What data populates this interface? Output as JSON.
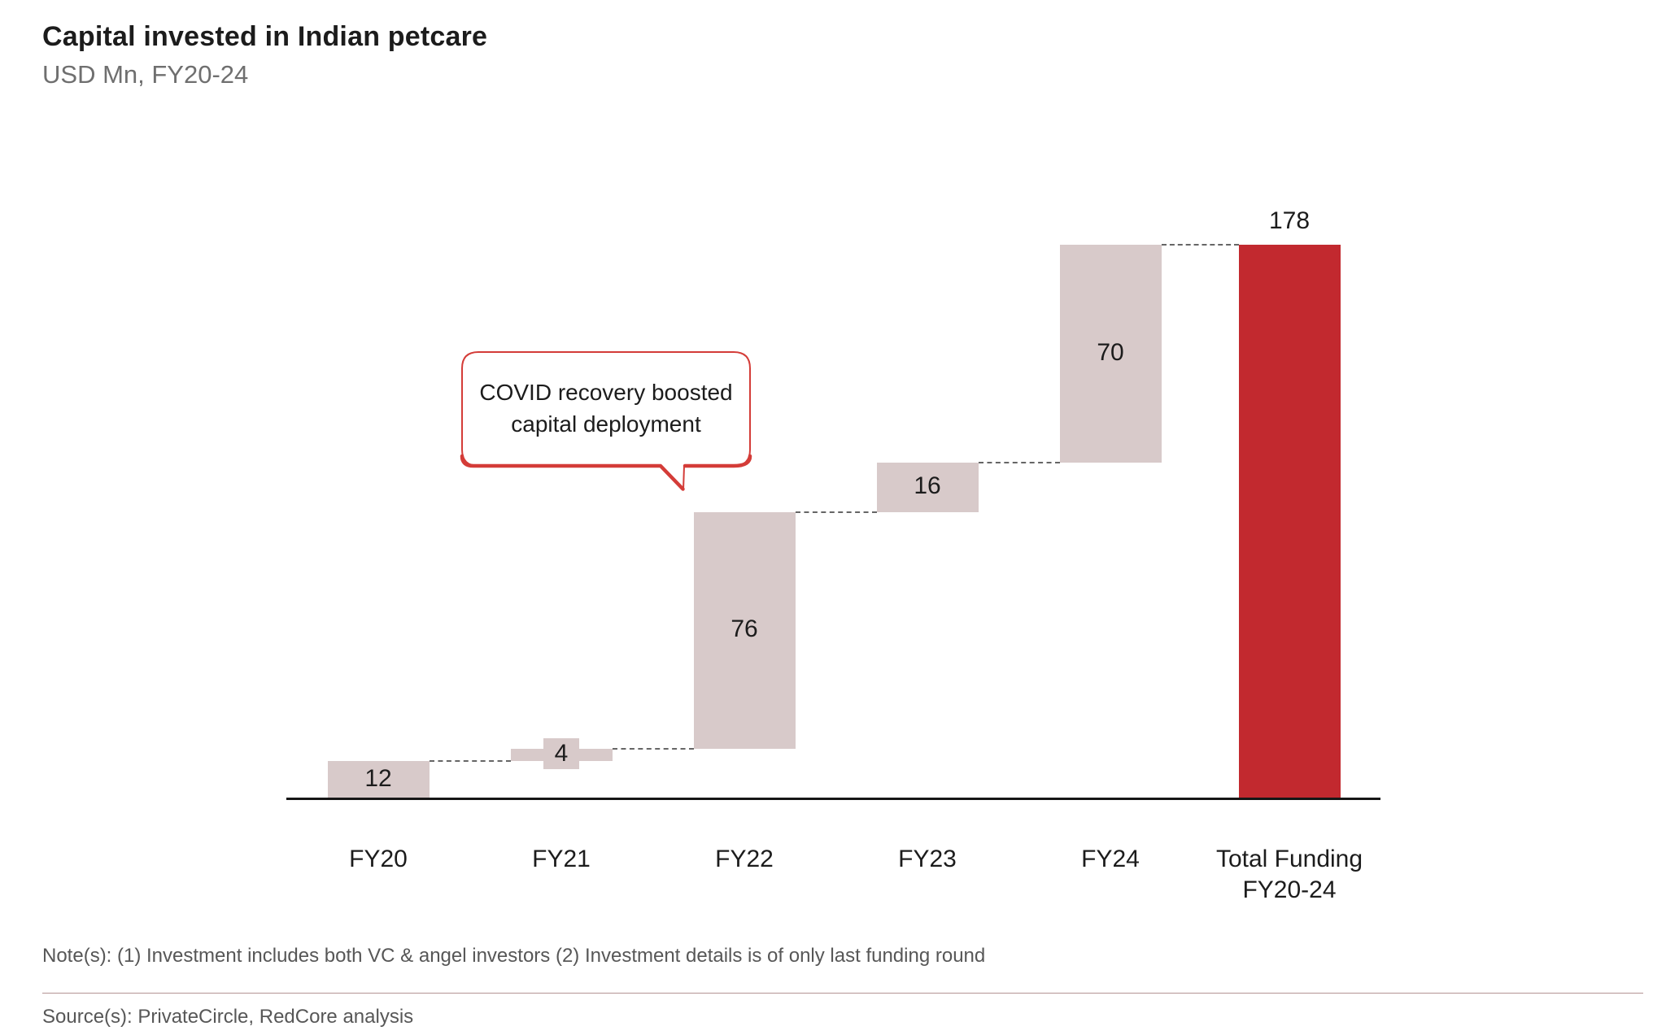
{
  "header": {
    "title": "Capital invested in Indian petcare",
    "subtitle": "USD Mn, FY20-24"
  },
  "callout": {
    "line1": "COVID recovery boosted",
    "line2": "capital deployment"
  },
  "colors": {
    "step_bar": "#d8caca",
    "total_bar": "#c2292f",
    "callout_red": "#d43c38",
    "axis": "#161616",
    "connector": "#666666",
    "text_dark": "#1c1c1c",
    "text_gray": "#6f6f6f"
  },
  "chart_data": {
    "type": "bar",
    "subtype": "waterfall",
    "title": "Capital invested in Indian petcare",
    "subtitle": "USD Mn, FY20-24",
    "unit": "USD Mn",
    "categories": [
      "FY20",
      "FY21",
      "FY22",
      "FY23",
      "FY24",
      "Total Funding FY20-24"
    ],
    "values": [
      12,
      4,
      76,
      16,
      70,
      178
    ],
    "cumulative_levels": [
      12,
      16,
      92,
      108,
      178
    ],
    "ylim": [
      0,
      190
    ],
    "grid": false,
    "legend": false,
    "annotation": {
      "text": "COVID recovery boosted capital deployment",
      "points_to": "FY22"
    },
    "points": [
      {
        "label": "FY20",
        "value": 12,
        "is_total": false
      },
      {
        "label": "FY21",
        "value": 4,
        "is_total": false
      },
      {
        "label": "FY22",
        "value": 76,
        "is_total": false
      },
      {
        "label": "FY23",
        "value": 16,
        "is_total": false
      },
      {
        "label": "FY24",
        "value": 70,
        "is_total": false
      },
      {
        "label": "Total Funding FY20-24",
        "label_lines": [
          "Total Funding",
          "FY20-24"
        ],
        "value": 178,
        "is_total": true
      }
    ]
  },
  "footer": {
    "note": "Note(s): (1) Investment includes both VC & angel investors (2) Investment details is of only last funding round",
    "source": "Source(s): PrivateCircle, RedCore analysis"
  }
}
